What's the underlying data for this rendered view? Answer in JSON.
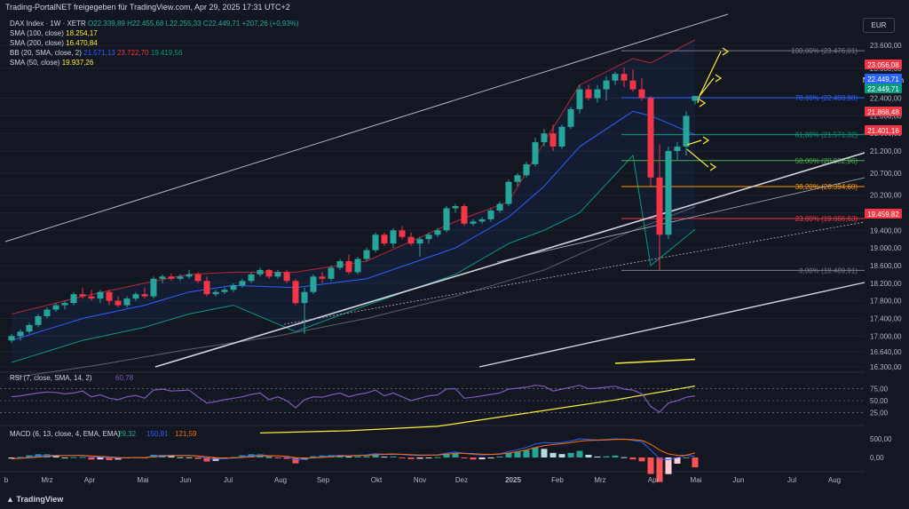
{
  "header": {
    "title": "Trading-PortalNET freigegeben für TradingView.com, Apr 29, 2025 17:31 UTC+2"
  },
  "legend": {
    "symbol": "DAX Index · 1W · XETR",
    "ohlc": "O22.339,89 H22.455,68 L22.255,33 C22.449,71 +207,26 (+0,93%)",
    "sma100_name": "SMA (100, close)",
    "sma100_val": "18.254,17",
    "sma200_name": "SMA (200, close)",
    "sma200_val": "16.470,84",
    "bb_name": "BB (20, SMA, close, 2)",
    "bb_mid": "21.571,13",
    "bb_up": "23.722,70",
    "bb_low": "19.419,56",
    "sma50_name": "SMA (50, close)",
    "sma50_val": "19.937,26"
  },
  "currency": "EUR",
  "colors": {
    "up": "#26a69a",
    "down": "#f23645",
    "sma100": "#ffeb3b",
    "sma50": "#2962ff",
    "bb": "#b22833",
    "bb_low": "#089981",
    "fib": "#787b86",
    "arrows": "#ffeb3b",
    "rsi": "#7e57c2",
    "macd": "#2962ff",
    "signal": "#ff6d00"
  },
  "chart_data": [
    {
      "type": "candlestick",
      "title": "DAX Index · 1W · XETR",
      "y_ticks": [
        "23.600,00",
        "23.080,00",
        "22.400,00",
        "22.000,00",
        "21.600,00",
        "21.200,00",
        "20.700,00",
        "20.200,00",
        "19.800,00",
        "19.400,00",
        "19.000,00",
        "18.600,00",
        "18.200,00",
        "17.800,00",
        "17.400,00",
        "17.000,00",
        "16.640,00",
        "16.300,00"
      ],
      "x_ticks": [
        "b",
        "Mrz",
        "Apr",
        "Mai",
        "Jun",
        "Jul",
        "Aug",
        "Sep",
        "Okt",
        "Nov",
        "Dez",
        "2025",
        "Feb",
        "Mrz",
        "Apr",
        "Mai",
        "Jun",
        "Jul",
        "Aug"
      ],
      "price_labels": [
        {
          "text": "23.056,08",
          "kind": "down"
        },
        {
          "text": "Nachbörslich",
          "kind": "blue"
        },
        {
          "text": "22.449,71",
          "kind": "blue"
        },
        {
          "text": "22.449,71",
          "kind": "up"
        },
        {
          "text": "21.868,48",
          "kind": "down"
        },
        {
          "text": "21.401,16",
          "kind": "down"
        },
        {
          "text": "19.459,82",
          "kind": "down"
        }
      ],
      "fib_levels": [
        {
          "label": "100,00% (23.476,01)",
          "price": 23476.01,
          "color": "#787b86"
        },
        {
          "label": "78,60% (22.408,98)",
          "price": 22408.98,
          "color": "#2962ff"
        },
        {
          "label": "61,80% (21.571,32)",
          "price": 21571.32,
          "color": "#089981"
        },
        {
          "label": "50,00% (20.982,96)",
          "price": 20982.96,
          "color": "#4caf50"
        },
        {
          "label": "38,20% (20.394,60)",
          "price": 20394.6,
          "color": "#ff9800"
        },
        {
          "label": "23,60% (19.666,63)",
          "price": 19666.63,
          "color": "#f23645"
        },
        {
          "label": "0,00% (18.489,91)",
          "price": 18489.91,
          "color": "#787b86"
        }
      ],
      "candles": [
        [
          16900,
          17050,
          16850,
          17000
        ],
        [
          17000,
          17150,
          16900,
          17100
        ],
        [
          17100,
          17300,
          17050,
          17250
        ],
        [
          17250,
          17500,
          17200,
          17450
        ],
        [
          17450,
          17650,
          17400,
          17600
        ],
        [
          17600,
          17750,
          17550,
          17700
        ],
        [
          17700,
          17800,
          17600,
          17750
        ],
        [
          17750,
          18000,
          17700,
          17950
        ],
        [
          17950,
          18100,
          17850,
          17900
        ],
        [
          17900,
          18050,
          17800,
          17850
        ],
        [
          17850,
          18050,
          17750,
          18000
        ],
        [
          18000,
          18050,
          17700,
          17800
        ],
        [
          17800,
          17900,
          17650,
          17700
        ],
        [
          17700,
          17900,
          17650,
          17850
        ],
        [
          17850,
          18000,
          17800,
          17950
        ],
        [
          17950,
          18100,
          17850,
          17900
        ],
        [
          17900,
          18350,
          17850,
          18300
        ],
        [
          18300,
          18400,
          18200,
          18350
        ],
        [
          18350,
          18420,
          18250,
          18300
        ],
        [
          18300,
          18400,
          18250,
          18350
        ],
        [
          18350,
          18500,
          18300,
          18400
        ],
        [
          18400,
          18450,
          18200,
          18250
        ],
        [
          18250,
          18350,
          17900,
          17950
        ],
        [
          17950,
          18050,
          17900,
          18000
        ],
        [
          18000,
          18100,
          17950,
          18050
        ],
        [
          18050,
          18200,
          18000,
          18150
        ],
        [
          18150,
          18300,
          18100,
          18250
        ],
        [
          18250,
          18450,
          18200,
          18400
        ],
        [
          18400,
          18550,
          18350,
          18500
        ],
        [
          18500,
          18520,
          18300,
          18350
        ],
        [
          18350,
          18500,
          18300,
          18450
        ],
        [
          18450,
          18500,
          18200,
          18250
        ],
        [
          18250,
          18300,
          17700,
          17750
        ],
        [
          17750,
          18100,
          17050,
          18000
        ],
        [
          18000,
          18400,
          17950,
          18350
        ],
        [
          18350,
          18450,
          18200,
          18300
        ],
        [
          18300,
          18600,
          18250,
          18550
        ],
        [
          18550,
          18750,
          18500,
          18700
        ],
        [
          18700,
          18850,
          18400,
          18450
        ],
        [
          18450,
          18800,
          18400,
          18750
        ],
        [
          18750,
          19000,
          18700,
          18950
        ],
        [
          18950,
          19350,
          18900,
          19300
        ],
        [
          19300,
          19350,
          19050,
          19100
        ],
        [
          19100,
          19450,
          19000,
          19400
        ],
        [
          19400,
          19500,
          19200,
          19250
        ],
        [
          19250,
          19350,
          19050,
          19100
        ],
        [
          19100,
          19250,
          18800,
          19200
        ],
        [
          19200,
          19350,
          19100,
          19300
        ],
        [
          19300,
          19450,
          19250,
          19400
        ],
        [
          19400,
          19950,
          19350,
          19900
        ],
        [
          19900,
          20000,
          19800,
          19950
        ],
        [
          19950,
          20000,
          19500,
          19550
        ],
        [
          19550,
          19650,
          19500,
          19600
        ],
        [
          19600,
          19700,
          19550,
          19650
        ],
        [
          19650,
          19900,
          19600,
          19850
        ],
        [
          19850,
          20050,
          19800,
          20000
        ],
        [
          20000,
          20550,
          19950,
          20500
        ],
        [
          20500,
          20700,
          20400,
          20650
        ],
        [
          20650,
          20950,
          20600,
          20900
        ],
        [
          20900,
          21500,
          20850,
          21400
        ],
        [
          21400,
          21700,
          21300,
          21600
        ],
        [
          21600,
          21800,
          21200,
          21300
        ],
        [
          21300,
          21800,
          21250,
          21750
        ],
        [
          21750,
          22200,
          21700,
          22150
        ],
        [
          22150,
          22700,
          22050,
          22600
        ],
        [
          22600,
          22700,
          22350,
          22400
        ],
        [
          22400,
          22700,
          22300,
          22600
        ],
        [
          22600,
          22900,
          22350,
          22800
        ],
        [
          22800,
          23000,
          22700,
          22950
        ],
        [
          22950,
          23100,
          22650,
          22800
        ],
        [
          22800,
          23050,
          22550,
          22600
        ],
        [
          22600,
          22850,
          22350,
          22400
        ],
        [
          22400,
          22450,
          20400,
          20600
        ],
        [
          20600,
          21350,
          18500,
          19300
        ],
        [
          19300,
          21300,
          19200,
          21200
        ],
        [
          21200,
          21400,
          21000,
          21300
        ],
        [
          21300,
          22100,
          21100,
          22000
        ],
        [
          22339.89,
          22455.68,
          22255.33,
          22449.71
        ]
      ],
      "sma100": [
        [
          0,
          16350
        ],
        [
          10,
          16400
        ],
        [
          20,
          16500
        ],
        [
          30,
          16800
        ],
        [
          40,
          17100
        ],
        [
          50,
          17450
        ],
        [
          60,
          17800
        ],
        [
          70,
          18150
        ],
        [
          77,
          18254.17
        ]
      ],
      "sma200": [
        [
          68,
          16420
        ],
        [
          77,
          16470.84
        ]
      ],
      "sma50": [
        [
          0,
          16050
        ],
        [
          10,
          16350
        ],
        [
          20,
          16700
        ],
        [
          30,
          17000
        ],
        [
          40,
          17400
        ],
        [
          50,
          17900
        ],
        [
          60,
          18500
        ],
        [
          70,
          19400
        ],
        [
          77,
          19937.26
        ]
      ],
      "bb_upper": [
        [
          0,
          17500
        ],
        [
          8,
          17900
        ],
        [
          15,
          18200
        ],
        [
          20,
          18400
        ],
        [
          25,
          18450
        ],
        [
          32,
          18450
        ],
        [
          40,
          18700
        ],
        [
          50,
          19600
        ],
        [
          56,
          20050
        ],
        [
          60,
          21400
        ],
        [
          64,
          22700
        ],
        [
          70,
          23300
        ],
        [
          72,
          23200
        ],
        [
          77,
          23722.7
        ]
      ],
      "bb_mid": [
        [
          0,
          16900
        ],
        [
          8,
          17400
        ],
        [
          15,
          17700
        ],
        [
          20,
          18000
        ],
        [
          25,
          18150
        ],
        [
          32,
          18100
        ],
        [
          40,
          18300
        ],
        [
          50,
          19000
        ],
        [
          56,
          19700
        ],
        [
          60,
          20400
        ],
        [
          64,
          21300
        ],
        [
          70,
          22100
        ],
        [
          72,
          22000
        ],
        [
          77,
          21571.13
        ]
      ],
      "bb_lower": [
        [
          0,
          16400
        ],
        [
          8,
          16900
        ],
        [
          15,
          17200
        ],
        [
          20,
          17500
        ],
        [
          25,
          17700
        ],
        [
          32,
          17100
        ],
        [
          40,
          17700
        ],
        [
          50,
          18400
        ],
        [
          56,
          19100
        ],
        [
          60,
          19400
        ],
        [
          64,
          19800
        ],
        [
          70,
          21100
        ],
        [
          72,
          18600
        ],
        [
          77,
          19419.56
        ]
      ]
    },
    {
      "type": "line",
      "title": "RSI (7, close, SMA, 14, 2)",
      "value": "60,78",
      "y_ticks": [
        "75,00",
        "50,00",
        "25,00"
      ],
      "series": [
        {
          "name": "RSI",
          "values": [
            58,
            60,
            63,
            66,
            68,
            67,
            64,
            66,
            70,
            58,
            62,
            55,
            52,
            58,
            61,
            55,
            72,
            74,
            70,
            71,
            72,
            58,
            45,
            48,
            52,
            55,
            58,
            63,
            66,
            52,
            58,
            50,
            35,
            52,
            58,
            57,
            62,
            66,
            58,
            63,
            66,
            72,
            60,
            66,
            58,
            50,
            55,
            60,
            62,
            74,
            75,
            55,
            57,
            60,
            63,
            66,
            74,
            76,
            78,
            82,
            80,
            70,
            74,
            78,
            82,
            75,
            76,
            78,
            80,
            74,
            72,
            64,
            38,
            26,
            45,
            50,
            57,
            60
          ]
        }
      ]
    },
    {
      "type": "histogram",
      "title": "MACD (6, 13, close, 4, EMA, EMA)",
      "values_text": [
        "29,32",
        "150,91",
        "121,59"
      ],
      "y_ticks": [
        "500,00",
        "0,00"
      ],
      "macd": [
        -40,
        -20,
        10,
        40,
        60,
        60,
        50,
        55,
        60,
        20,
        10,
        -10,
        -20,
        -10,
        0,
        -5,
        40,
        60,
        60,
        55,
        55,
        30,
        -20,
        -40,
        -30,
        -10,
        20,
        50,
        70,
        50,
        40,
        20,
        -60,
        -40,
        0,
        20,
        40,
        60,
        50,
        60,
        70,
        100,
        90,
        100,
        80,
        60,
        55,
        60,
        70,
        120,
        150,
        110,
        80,
        70,
        80,
        100,
        160,
        210,
        270,
        360,
        400,
        390,
        400,
        440,
        500,
        480,
        470,
        480,
        500,
        490,
        460,
        420,
        200,
        -30,
        -60,
        0,
        60,
        29.32
      ],
      "signal": [
        -30,
        -25,
        -10,
        10,
        30,
        45,
        50,
        52,
        55,
        40,
        28,
        15,
        0,
        -5,
        -2,
        -3,
        15,
        35,
        48,
        52,
        53,
        43,
        18,
        -8,
        -18,
        -14,
        0,
        20,
        40,
        45,
        43,
        33,
        -5,
        -20,
        -12,
        2,
        18,
        35,
        42,
        50,
        58,
        75,
        82,
        90,
        86,
        75,
        67,
        64,
        67,
        88,
        113,
        112,
        99,
        87,
        84,
        91,
        119,
        156,
        202,
        265,
        319,
        347,
        368,
        397,
        438,
        455,
        461,
        469,
        482,
        487,
        478,
        456,
        354,
        200,
        96,
        58,
        59,
        121.59
      ]
    }
  ]
}
